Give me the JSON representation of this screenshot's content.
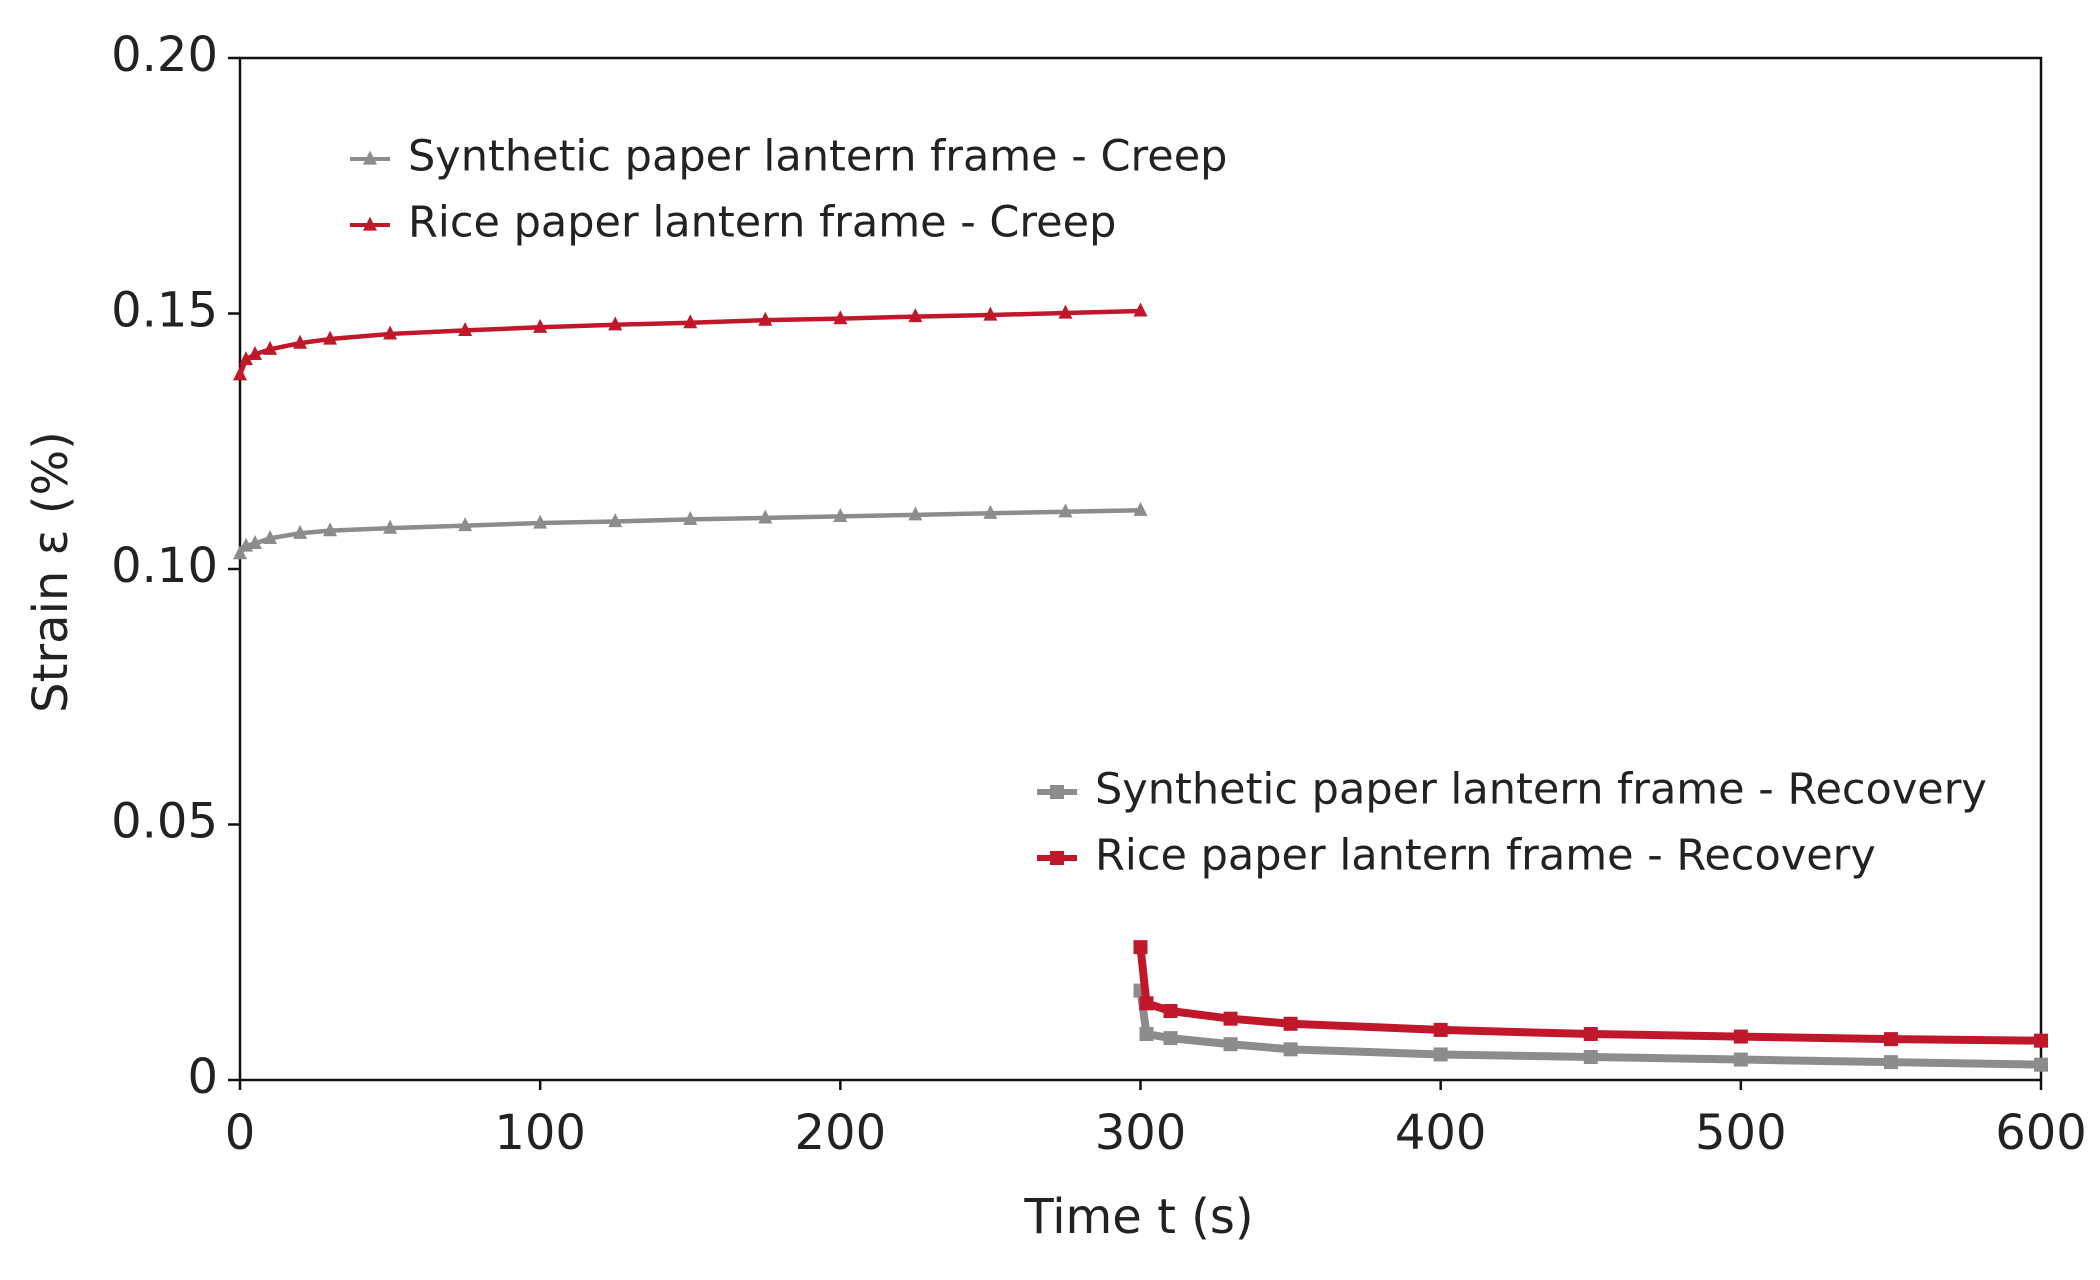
{
  "chart_data": {
    "type": "line",
    "x_label": "Time t (s)",
    "y_label": "Strain ε (%)",
    "xlim": [
      0,
      600
    ],
    "xticks": [
      0,
      100,
      200,
      300,
      400,
      500,
      600
    ],
    "ylim": [
      0,
      0.2
    ],
    "yticks": [
      0,
      0.05,
      {
        "value": 0.1,
        "label": "0.10"
      },
      0.15,
      {
        "value": 0.2,
        "label": "0.20"
      }
    ],
    "series": [
      {
        "name": "Synthetic paper lantern frame - Creep",
        "color": "#8c8c8c",
        "marker": "triangle",
        "x": [
          0,
          2,
          5,
          10,
          20,
          30,
          50,
          75,
          100,
          125,
          150,
          175,
          200,
          225,
          250,
          275,
          300
        ],
        "values": [
          0.103,
          0.1045,
          0.105,
          0.106,
          0.107,
          0.1075,
          0.108,
          0.1085,
          0.109,
          0.1093,
          0.1097,
          0.11,
          0.1103,
          0.1106,
          0.1109,
          0.1112,
          0.1115
        ]
      },
      {
        "name": "Rice paper lantern frame - Creep",
        "color": "#c0182a",
        "marker": "triangle",
        "x": [
          0,
          2,
          5,
          10,
          20,
          30,
          50,
          75,
          100,
          125,
          150,
          175,
          200,
          225,
          250,
          275,
          300
        ],
        "values": [
          0.138,
          0.141,
          0.142,
          0.143,
          0.1442,
          0.145,
          0.146,
          0.1467,
          0.1473,
          0.1478,
          0.1482,
          0.1487,
          0.149,
          0.1494,
          0.1497,
          0.1501,
          0.1505
        ]
      },
      {
        "name": "Synthetic paper lantern frame - Recovery",
        "color": "#8c8c8c",
        "marker": "square",
        "x": [
          300,
          302,
          310,
          330,
          350,
          400,
          450,
          500,
          550,
          600
        ],
        "values": [
          0.0175,
          0.009,
          0.0082,
          0.007,
          0.006,
          0.005,
          0.0045,
          0.004,
          0.0035,
          0.003
        ]
      },
      {
        "name": "Rice paper lantern frame - Recovery",
        "color": "#c0182a",
        "marker": "square",
        "x": [
          300,
          302,
          310,
          330,
          350,
          400,
          450,
          500,
          550,
          600
        ],
        "values": [
          0.026,
          0.015,
          0.0135,
          0.012,
          0.011,
          0.0098,
          0.009,
          0.0085,
          0.008,
          0.0077
        ]
      }
    ]
  }
}
